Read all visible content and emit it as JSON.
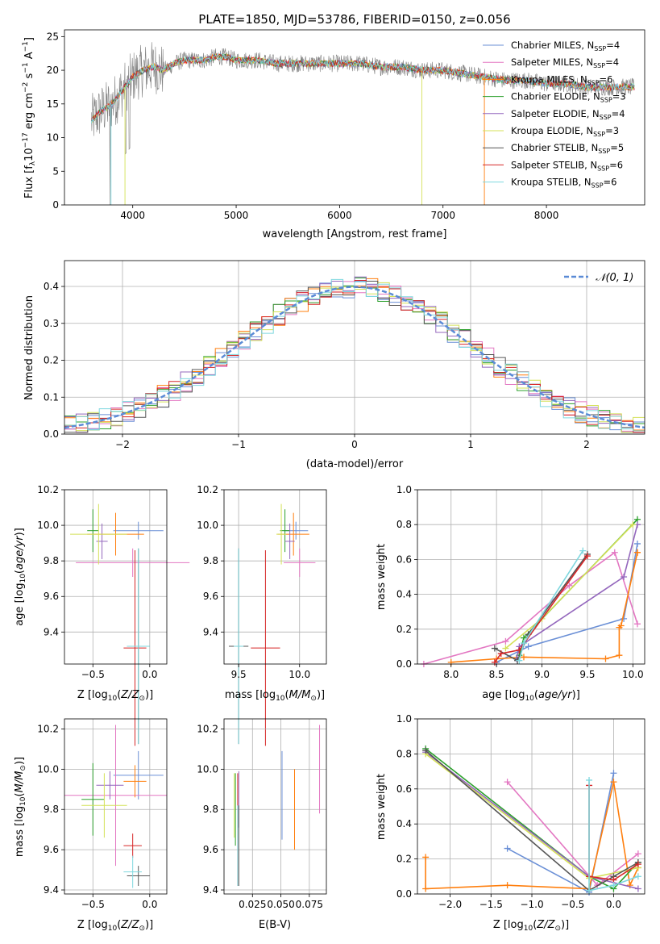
{
  "figure_title": "PLATE=1850, MJD=53786, FIBERID=0150, z=0.056",
  "colors": {
    "series": [
      "#6a8fd6",
      "#e377c2",
      "#ff7f0e",
      "#2ca02c",
      "#9467bd",
      "#d4e157",
      "#555555",
      "#d62728",
      "#7fd8df"
    ],
    "alt_palette": [
      "#6a8fd6",
      "#e377c2",
      "#e07b2c",
      "#4d9a4d",
      "#9b30b0",
      "#c8e06a",
      "#444444",
      "#b01515",
      "#7fd8df"
    ]
  },
  "panels": {
    "spectrum": {
      "xlabel": "wavelength [Angstrom, rest frame]",
      "ylabel": "Flux [f",
      "xticks": [
        "4000",
        "5000",
        "6000",
        "7000",
        "8000"
      ],
      "yticks": [
        "0",
        "5",
        "10",
        "15",
        "20",
        "25"
      ],
      "legend": [
        {
          "model": "Chabrier MILES, N",
          "n": "4"
        },
        {
          "model": "Salpeter MILES, N",
          "n": "4"
        },
        {
          "model": "Kroupa MILES, N",
          "n": "6"
        },
        {
          "model": "Chabrier ELODIE, N",
          "n": "3"
        },
        {
          "model": "Salpeter ELODIE, N",
          "n": "4"
        },
        {
          "model": "Kroupa ELODIE, N",
          "n": "3"
        },
        {
          "model": "Chabrier STELIB, N",
          "n": "5"
        },
        {
          "model": "Salpeter STELIB, N",
          "n": "6"
        },
        {
          "model": "Kroupa STELIB, N",
          "n": "6"
        }
      ]
    },
    "residuals": {
      "xlabel": "(data-model)/error",
      "ylabel": "Normed distribution",
      "xticks": [
        "−2",
        "−1",
        "0",
        "1",
        "2"
      ],
      "yticks": [
        "0.0",
        "0.1",
        "0.2",
        "0.3",
        "0.4"
      ],
      "legend_label": "𝒩(0, 1)"
    },
    "age_vs_z": {
      "xlabel": "Z [log",
      "ylabel": "age  [log",
      "xticks": [
        "−0.5",
        "0.0"
      ],
      "yticks": [
        "9.4",
        "9.6",
        "9.8",
        "10.0",
        "10.2"
      ]
    },
    "age_vs_mass": {
      "xlabel": "mass [log",
      "xticks": [
        "9.5",
        "10.0"
      ],
      "yticks": [
        "9.4",
        "9.6",
        "9.8",
        "10.0",
        "10.2"
      ]
    },
    "weight_vs_age": {
      "xlabel": "age  [log",
      "ylabel": "mass weight",
      "xticks": [
        "8.0",
        "8.5",
        "9.0",
        "9.5",
        "10.0"
      ],
      "yticks": [
        "0.0",
        "0.2",
        "0.4",
        "0.6",
        "0.8",
        "1.0"
      ]
    },
    "mass_vs_z": {
      "xlabel": "Z [log",
      "ylabel": "mass [log",
      "xticks": [
        "−0.5",
        "0.0"
      ],
      "yticks": [
        "9.4",
        "9.6",
        "9.8",
        "10.0",
        "10.2"
      ]
    },
    "mass_vs_ebv": {
      "xlabel": "E(B-V)",
      "xticks": [
        "0.025",
        "0.050",
        "0.075"
      ],
      "yticks": [
        "9.4",
        "9.6",
        "9.8",
        "10.0",
        "10.2"
      ]
    },
    "weight_vs_z": {
      "xlabel": "Z [log",
      "ylabel": "mass weight",
      "xticks": [
        "−2.0",
        "−1.5",
        "−1.0",
        "−0.5",
        "0.0"
      ],
      "yticks": [
        "0.0",
        "0.2",
        "0.4",
        "0.6",
        "0.8",
        "1.0"
      ]
    }
  },
  "chart_data": [
    {
      "type": "line",
      "title": "PLATE=1850, MJD=53786, FIBERID=0150, z=0.056",
      "xlabel": "wavelength [Angstrom, rest frame]",
      "ylabel": "Flux [fλ 10^-17 erg cm^-2 s^-1 A^-1]",
      "xlim": [
        3340,
        8950
      ],
      "ylim": [
        0,
        26
      ],
      "continuum_wavelength": [
        3600,
        3700,
        3800,
        3900,
        4000,
        4100,
        4200,
        4300,
        4400,
        4500,
        4600,
        4700,
        4800,
        4900,
        5000,
        5200,
        5400,
        5600,
        5800,
        6000,
        6200,
        6400,
        6600,
        6800,
        7000,
        7200,
        7400,
        7600,
        7800,
        8000,
        8200,
        8400,
        8600,
        8800
      ],
      "continuum_flux": [
        12.5,
        14.0,
        15.0,
        17.0,
        19.0,
        20.0,
        20.5,
        20.0,
        21.0,
        21.5,
        21.5,
        21.5,
        22.0,
        22.0,
        21.5,
        21.5,
        21.0,
        21.0,
        21.0,
        21.0,
        21.0,
        20.5,
        20.5,
        20.0,
        20.0,
        19.5,
        19.0,
        18.5,
        18.5,
        18.0,
        18.0,
        17.5,
        17.5,
        17.5
      ],
      "legend": [
        "Chabrier MILES, N_SSP=4",
        "Salpeter MILES, N_SSP=4",
        "Kroupa MILES, N_SSP=6",
        "Chabrier ELODIE, N_SSP=3",
        "Salpeter ELODIE, N_SSP=4",
        "Kroupa ELODIE, N_SSP=3",
        "Chabrier STELIB, N_SSP=5",
        "Salpeter STELIB, N_SSP=6",
        "Kroupa STELIB, N_SSP=6"
      ],
      "legend_position": "top-right"
    },
    {
      "type": "bar",
      "xlabel": "(data-model)/error",
      "ylabel": "Normed distribution",
      "xlim": [
        -2.5,
        2.5
      ],
      "ylim": [
        0,
        0.47
      ],
      "grid": true,
      "reference_curve": {
        "name": "𝒩(0, 1)",
        "mean": 0,
        "sigma": 1
      },
      "bin_width": 0.1,
      "bin_start": -2.5,
      "bin_count": 50,
      "legend_position": "top-right"
    },
    {
      "type": "scatter",
      "xlabel": "Z [log10(Z/Z⊙)]",
      "ylabel": "age  [log10(age/yr)]",
      "xlim": [
        -0.75,
        0.15
      ],
      "ylim": [
        9.22,
        10.2
      ],
      "grid": true,
      "points": [
        {
          "x": -0.1,
          "y": 9.97,
          "xerr": 0.22,
          "yerr": 0.05
        },
        {
          "x": -0.15,
          "y": 9.79,
          "xerr": 0.5,
          "yerr": 0.08
        },
        {
          "x": -0.3,
          "y": 9.95,
          "xerr": 0.25,
          "yerr": 0.12
        },
        {
          "x": -0.5,
          "y": 9.97,
          "xerr": 0.05,
          "yerr": 0.12
        },
        {
          "x": -0.42,
          "y": 9.91,
          "xerr": 0.05,
          "yerr": 0.1
        },
        {
          "x": -0.45,
          "y": 9.95,
          "xerr": 0.25,
          "yerr": 0.17
        },
        {
          "x": -0.1,
          "y": 9.32,
          "xerr": 0.1,
          "yerr": 0.55
        },
        {
          "x": -0.13,
          "y": 9.31,
          "xerr": 0.1,
          "yerr": 0.55
        },
        {
          "x": -0.1,
          "y": 9.32,
          "xerr": 0.1,
          "yerr": 0.55
        }
      ]
    },
    {
      "type": "scatter",
      "xlabel": "mass [log10(M/M⊙)]",
      "ylabel": "age  [log10(age/yr)]",
      "xlim": [
        9.38,
        10.22
      ],
      "ylim": [
        9.22,
        10.2
      ],
      "grid": true,
      "points": [
        {
          "x": 9.97,
          "y": 9.97,
          "xerr": 0.1,
          "yerr": 0.05
        },
        {
          "x": 10.0,
          "y": 9.79,
          "xerr": 0.13,
          "yerr": 0.08
        },
        {
          "x": 9.95,
          "y": 9.95,
          "xerr": 0.13,
          "yerr": 0.12
        },
        {
          "x": 9.88,
          "y": 9.97,
          "xerr": 0.04,
          "yerr": 0.12
        },
        {
          "x": 9.92,
          "y": 9.91,
          "xerr": 0.04,
          "yerr": 0.1
        },
        {
          "x": 9.85,
          "y": 9.95,
          "xerr": 0.04,
          "yerr": 0.17
        },
        {
          "x": 9.5,
          "y": 9.32,
          "xerr": 0.08,
          "yerr": 0.55
        },
        {
          "x": 9.72,
          "y": 9.31,
          "xerr": 0.12,
          "yerr": 0.55
        },
        {
          "x": 9.5,
          "y": 9.32,
          "xerr": 0.04,
          "yerr": 0.55
        }
      ]
    },
    {
      "type": "line",
      "xlabel": "age  [log10(age/yr)]",
      "ylabel": "mass weight",
      "xlim": [
        7.63,
        10.13
      ],
      "ylim": [
        0,
        1
      ],
      "grid": true,
      "series": [
        {
          "x": [
            8.5,
            8.85,
            9.9,
            10.05
          ],
          "y": [
            0.01,
            0.1,
            0.26,
            0.69
          ]
        },
        {
          "x": [
            7.7,
            8.6,
            9.3,
            9.8,
            10.05
          ],
          "y": [
            0.0,
            0.13,
            0.45,
            0.64,
            0.23
          ]
        },
        {
          "x": [
            8.0,
            8.5,
            8.8,
            9.7,
            9.85,
            9.85,
            9.87,
            10.05,
            10.05
          ],
          "y": [
            0.01,
            0.03,
            0.04,
            0.03,
            0.05,
            0.21,
            0.22,
            0.64,
            0.64
          ]
        },
        {
          "x": [
            8.75,
            8.8,
            10.05
          ],
          "y": [
            0.05,
            0.15,
            0.83
          ]
        },
        {
          "x": [
            8.72,
            8.75,
            9.9,
            10.05
          ],
          "y": [
            0.03,
            0.1,
            0.5,
            0.8
          ]
        },
        {
          "x": [
            8.6,
            9.0,
            10.0
          ],
          "y": [
            0.09,
            0.26,
            0.8
          ]
        },
        {
          "x": [
            8.48,
            8.73,
            8.85,
            9.5
          ],
          "y": [
            0.09,
            0.02,
            0.17,
            0.63
          ]
        },
        {
          "x": [
            8.48,
            8.55,
            8.75,
            9.5
          ],
          "y": [
            0.01,
            0.06,
            0.08,
            0.62
          ]
        },
        {
          "x": [
            8.75,
            8.8,
            9.45
          ],
          "y": [
            0.02,
            0.12,
            0.65
          ]
        }
      ]
    },
    {
      "type": "scatter",
      "xlabel": "Z [log10(Z/Z⊙)]",
      "ylabel": "mass [log10(M/M⊙)]",
      "xlim": [
        -0.75,
        0.15
      ],
      "ylim": [
        9.38,
        10.25
      ],
      "grid": true,
      "points": [
        {
          "x": -0.1,
          "y": 9.97,
          "xerr": 0.22,
          "yerr": 0.12
        },
        {
          "x": -0.3,
          "y": 9.87,
          "xerr": 0.45,
          "yerr": 0.35
        },
        {
          "x": -0.13,
          "y": 9.94,
          "xerr": 0.1,
          "yerr": 0.08
        },
        {
          "x": -0.5,
          "y": 9.85,
          "xerr": 0.1,
          "yerr": 0.18
        },
        {
          "x": -0.35,
          "y": 9.92,
          "xerr": 0.12,
          "yerr": 0.07
        },
        {
          "x": -0.4,
          "y": 9.82,
          "xerr": 0.2,
          "yerr": 0.16
        },
        {
          "x": -0.1,
          "y": 9.47,
          "xerr": 0.1,
          "yerr": 0.05
        },
        {
          "x": -0.15,
          "y": 9.62,
          "xerr": 0.08,
          "yerr": 0.06
        },
        {
          "x": -0.15,
          "y": 9.49,
          "xerr": 0.08,
          "yerr": 0.08
        }
      ]
    },
    {
      "type": "scatter",
      "xlabel": "E(B-V)",
      "ylabel": "mass [log10(M/M⊙)]",
      "xlim": [
        0.0,
        0.09
      ],
      "ylim": [
        9.38,
        10.25
      ],
      "grid": true,
      "points": [
        {
          "x": 0.051,
          "y": 9.87,
          "yerr": 0.22
        },
        {
          "x": 0.084,
          "y": 10.0,
          "yerr": 0.22
        },
        {
          "x": 0.062,
          "y": 9.8,
          "yerr": 0.2
        },
        {
          "x": 0.01,
          "y": 9.8,
          "yerr": 0.18
        },
        {
          "x": 0.013,
          "y": 9.85,
          "yerr": 0.14
        },
        {
          "x": 0.009,
          "y": 9.82,
          "yerr": 0.16
        },
        {
          "x": 0.013,
          "y": 9.62,
          "yerr": 0.2
        },
        {
          "x": 0.012,
          "y": 9.7,
          "yerr": 0.28
        },
        {
          "x": 0.012,
          "y": 9.62,
          "yerr": 0.2
        }
      ]
    },
    {
      "type": "line",
      "xlabel": "Z [log10(Z/Z⊙)]",
      "ylabel": "mass weight",
      "xlim": [
        -2.4,
        0.38
      ],
      "ylim": [
        0,
        1
      ],
      "grid": true,
      "series": [
        {
          "x": [
            -1.3,
            -0.3,
            0.0
          ],
          "y": [
            0.26,
            0.01,
            0.69
          ]
        },
        {
          "x": [
            -1.3,
            -0.2,
            0.3
          ],
          "y": [
            0.64,
            0.05,
            0.23
          ]
        },
        {
          "x": [
            -2.3,
            -2.3,
            -1.3,
            -0.3,
            0.0,
            0.2,
            0.3
          ],
          "y": [
            0.21,
            0.03,
            0.05,
            0.03,
            0.64,
            0.05,
            0.15
          ]
        },
        {
          "x": [
            -2.3,
            -0.3,
            0.0,
            0.3
          ],
          "y": [
            0.83,
            0.1,
            0.03,
            0.18
          ]
        },
        {
          "x": [
            -2.3,
            -0.3,
            0.3
          ],
          "y": [
            0.81,
            0.1,
            0.03
          ]
        },
        {
          "x": [
            -2.3,
            -0.3,
            0.3
          ],
          "y": [
            0.8,
            0.09,
            0.15
          ]
        },
        {
          "x": [
            -2.3,
            -0.3,
            0.0,
            0.3
          ],
          "y": [
            0.82,
            0.02,
            0.1,
            0.18
          ]
        },
        {
          "x": [
            -0.3,
            -0.3,
            0.0,
            0.3
          ],
          "y": [
            0.62,
            0.1,
            0.08,
            0.17
          ]
        },
        {
          "x": [
            -0.3,
            -0.3,
            0.0,
            0.3
          ],
          "y": [
            0.65,
            0.02,
            0.05,
            0.1
          ]
        }
      ]
    }
  ]
}
